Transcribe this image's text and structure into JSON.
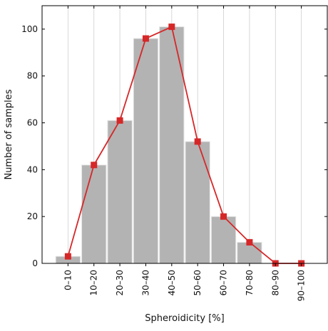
{
  "chart_data": {
    "type": "bar",
    "title": "",
    "xlabel": "Spheroidicity [%]",
    "ylabel": "Number of samples",
    "categories": [
      "0–10",
      "10–20",
      "20–30",
      "30–40",
      "40–50",
      "50–60",
      "60–70",
      "70–80",
      "80–90",
      "90–100"
    ],
    "values": [
      3,
      42,
      61,
      96,
      101,
      52,
      20,
      9,
      0,
      0
    ],
    "overlay_line": {
      "type": "line",
      "marker": "square",
      "values": [
        3,
        42,
        61,
        96,
        101,
        52,
        20,
        9,
        0,
        0
      ]
    },
    "ylim": [
      0,
      110
    ],
    "yticks": [
      0,
      20,
      40,
      60,
      80,
      100
    ],
    "grid": "vertical",
    "colors": {
      "bar": "#b3b3b3",
      "bar_edge": "#e6e6e6",
      "line": "#d62728",
      "grid": "#cfcfcf",
      "axis": "#000000"
    }
  }
}
